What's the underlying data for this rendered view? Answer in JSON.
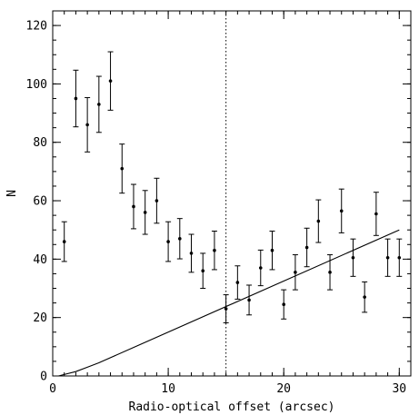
{
  "chart_data": {
    "type": "scatter",
    "title": "",
    "xlabel": "Radio-optical offset (arcsec)",
    "ylabel": "N",
    "xlim": [
      0,
      31
    ],
    "ylim": [
      0,
      125
    ],
    "x_ticks": [
      0,
      10,
      20,
      30
    ],
    "y_ticks": [
      0,
      20,
      40,
      60,
      80,
      100,
      120
    ],
    "x_minor_step": 1,
    "y_minor_step": 5,
    "grid": false,
    "series": [
      {
        "style": "points-with-errorbars",
        "points": [
          {
            "x": 1,
            "y": 46,
            "err": 6.8
          },
          {
            "x": 2,
            "y": 95,
            "err": 9.7
          },
          {
            "x": 3,
            "y": 86,
            "err": 9.3
          },
          {
            "x": 4,
            "y": 93,
            "err": 9.6
          },
          {
            "x": 5,
            "y": 101,
            "err": 10.0
          },
          {
            "x": 6,
            "y": 71,
            "err": 8.4
          },
          {
            "x": 7,
            "y": 58,
            "err": 7.6
          },
          {
            "x": 8,
            "y": 56,
            "err": 7.5
          },
          {
            "x": 9,
            "y": 60,
            "err": 7.7
          },
          {
            "x": 10,
            "y": 46,
            "err": 6.8
          },
          {
            "x": 11,
            "y": 47,
            "err": 6.9
          },
          {
            "x": 12,
            "y": 42,
            "err": 6.5
          },
          {
            "x": 13,
            "y": 36,
            "err": 6.0
          },
          {
            "x": 14,
            "y": 43,
            "err": 6.6
          },
          {
            "x": 15,
            "y": 23,
            "err": 4.8
          },
          {
            "x": 16,
            "y": 32,
            "err": 5.7
          },
          {
            "x": 17,
            "y": 26,
            "err": 5.1
          },
          {
            "x": 18,
            "y": 37,
            "err": 6.1
          },
          {
            "x": 19,
            "y": 43,
            "err": 6.6
          },
          {
            "x": 20,
            "y": 24.5,
            "err": 5.0
          },
          {
            "x": 21,
            "y": 35.5,
            "err": 6.0
          },
          {
            "x": 22,
            "y": 44,
            "err": 6.6
          },
          {
            "x": 23,
            "y": 53,
            "err": 7.3
          },
          {
            "x": 24,
            "y": 35.5,
            "err": 6.0
          },
          {
            "x": 25,
            "y": 56.5,
            "err": 7.5
          },
          {
            "x": 26,
            "y": 40.5,
            "err": 6.4
          },
          {
            "x": 27,
            "y": 27,
            "err": 5.2
          },
          {
            "x": 28,
            "y": 55.5,
            "err": 7.4
          },
          {
            "x": 29,
            "y": 40.5,
            "err": 6.4
          },
          {
            "x": 30,
            "y": 40.5,
            "err": 6.4
          }
        ]
      },
      {
        "style": "line",
        "points": [
          [
            0.5,
            0
          ],
          [
            1,
            0.5
          ],
          [
            2,
            1.5
          ],
          [
            3,
            3
          ],
          [
            4,
            4.5
          ],
          [
            30,
            50
          ]
        ]
      }
    ],
    "reference_lines": [
      {
        "orientation": "vertical",
        "x": 15,
        "style": "dotted"
      }
    ]
  }
}
